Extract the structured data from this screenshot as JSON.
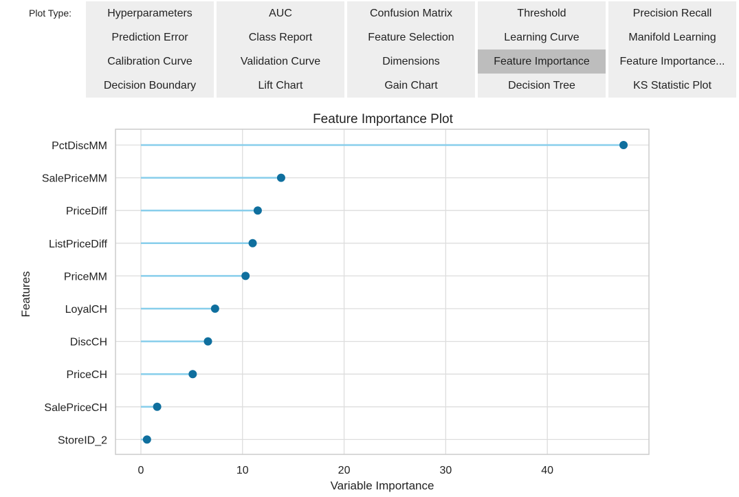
{
  "plot_type_label": "Plot Type:",
  "buttons": [
    {
      "label": "Hyperparameters",
      "selected": false
    },
    {
      "label": "AUC",
      "selected": false
    },
    {
      "label": "Confusion Matrix",
      "selected": false
    },
    {
      "label": "Threshold",
      "selected": false
    },
    {
      "label": "Precision Recall",
      "selected": false
    },
    {
      "label": "Prediction Error",
      "selected": false
    },
    {
      "label": "Class Report",
      "selected": false
    },
    {
      "label": "Feature Selection",
      "selected": false
    },
    {
      "label": "Learning Curve",
      "selected": false
    },
    {
      "label": "Manifold Learning",
      "selected": false
    },
    {
      "label": "Calibration Curve",
      "selected": false
    },
    {
      "label": "Validation Curve",
      "selected": false
    },
    {
      "label": "Dimensions",
      "selected": false
    },
    {
      "label": "Feature Importance",
      "selected": true
    },
    {
      "label": "Feature Importance...",
      "selected": false
    },
    {
      "label": "Decision Boundary",
      "selected": false
    },
    {
      "label": "Lift Chart",
      "selected": false
    },
    {
      "label": "Gain Chart",
      "selected": false
    },
    {
      "label": "Decision Tree",
      "selected": false
    },
    {
      "label": "KS Statistic Plot",
      "selected": false
    }
  ],
  "colors": {
    "button_bg": "#eeeeee",
    "button_selected_bg": "#bdbdbd",
    "stem": "#87ceeb",
    "marker": "#0f6f9e",
    "grid": "#dddddd",
    "frame": "#cccccc"
  },
  "chart_data": {
    "type": "scatter",
    "style": "lollipop",
    "title": "Feature Importance Plot",
    "xlabel": "Variable Importance",
    "ylabel": "Features",
    "xlim": [
      -2.5,
      50
    ],
    "xticks": [
      0,
      10,
      20,
      30,
      40
    ],
    "grid": true,
    "categories": [
      "PctDiscMM",
      "SalePriceMM",
      "PriceDiff",
      "ListPriceDiff",
      "PriceMM",
      "LoyalCH",
      "DiscCH",
      "PriceCH",
      "SalePriceCH",
      "StoreID_2"
    ],
    "values": [
      47.5,
      13.8,
      11.5,
      11.0,
      10.3,
      7.3,
      6.6,
      5.1,
      1.6,
      0.6
    ]
  }
}
